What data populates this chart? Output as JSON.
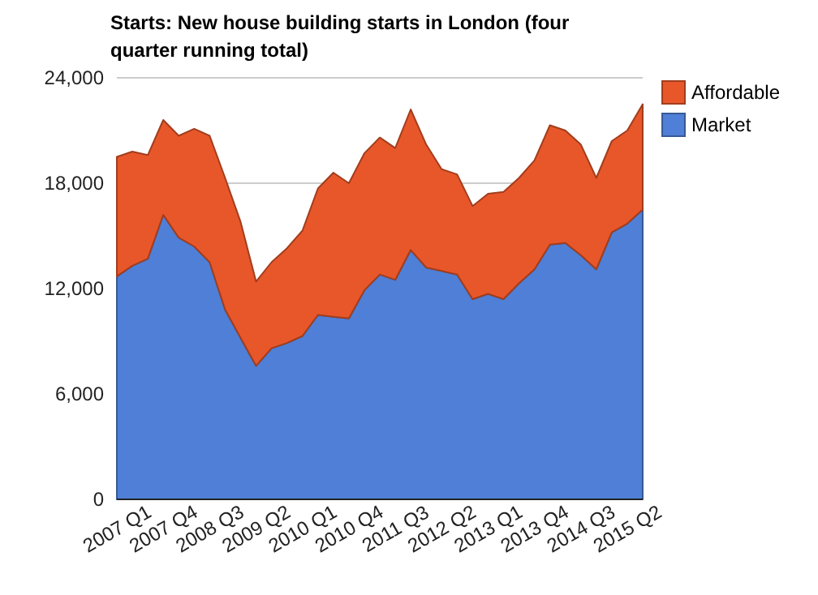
{
  "chart_data": {
    "type": "area",
    "stacked": true,
    "title": "Starts: New house building starts in London (four quarter running total)",
    "categories": [
      "2007 Q1",
      null,
      null,
      "2007 Q4",
      null,
      null,
      "2008 Q3",
      null,
      null,
      "2009 Q2",
      null,
      null,
      "2010 Q1",
      null,
      null,
      "2010 Q4",
      null,
      null,
      "2011 Q3",
      null,
      null,
      "2012 Q2",
      null,
      null,
      "2013 Q1",
      null,
      null,
      "2013 Q4",
      null,
      null,
      "2014 Q3",
      null,
      null,
      "2015 Q2",
      null
    ],
    "series": [
      {
        "name": "Market",
        "color": "#4f7fd6",
        "values": [
          12700,
          13300,
          13700,
          16200,
          14900,
          14400,
          13500,
          10800,
          9200,
          7600,
          8600,
          8900,
          9300,
          10500,
          10400,
          10300,
          11900,
          12800,
          12500,
          14200,
          13200,
          13000,
          12800,
          11400,
          11700,
          11400,
          12300,
          13100,
          14500,
          14600,
          13900,
          13100,
          15200,
          15700,
          16500
        ]
      },
      {
        "name": "Affordable",
        "color": "#e8572a",
        "values": [
          6800,
          6500,
          5900,
          5400,
          5800,
          6700,
          7200,
          7500,
          6600,
          4800,
          4900,
          5400,
          6000,
          7200,
          8200,
          7700,
          7800,
          7800,
          7500,
          8000,
          7000,
          5800,
          5700,
          5300,
          5700,
          6100,
          6000,
          6200,
          6800,
          6400,
          6300,
          5200,
          5200,
          5300,
          6000
        ]
      }
    ],
    "ylim": [
      0,
      24000
    ],
    "yticks": [
      0,
      {
        "value": 6000,
        "label": "6,000"
      },
      {
        "value": 12000,
        "label": "12,000"
      },
      {
        "value": 18000,
        "label": "18,000"
      },
      {
        "value": 24000,
        "label": "24,000"
      }
    ],
    "grid": "y",
    "legend": "right"
  }
}
